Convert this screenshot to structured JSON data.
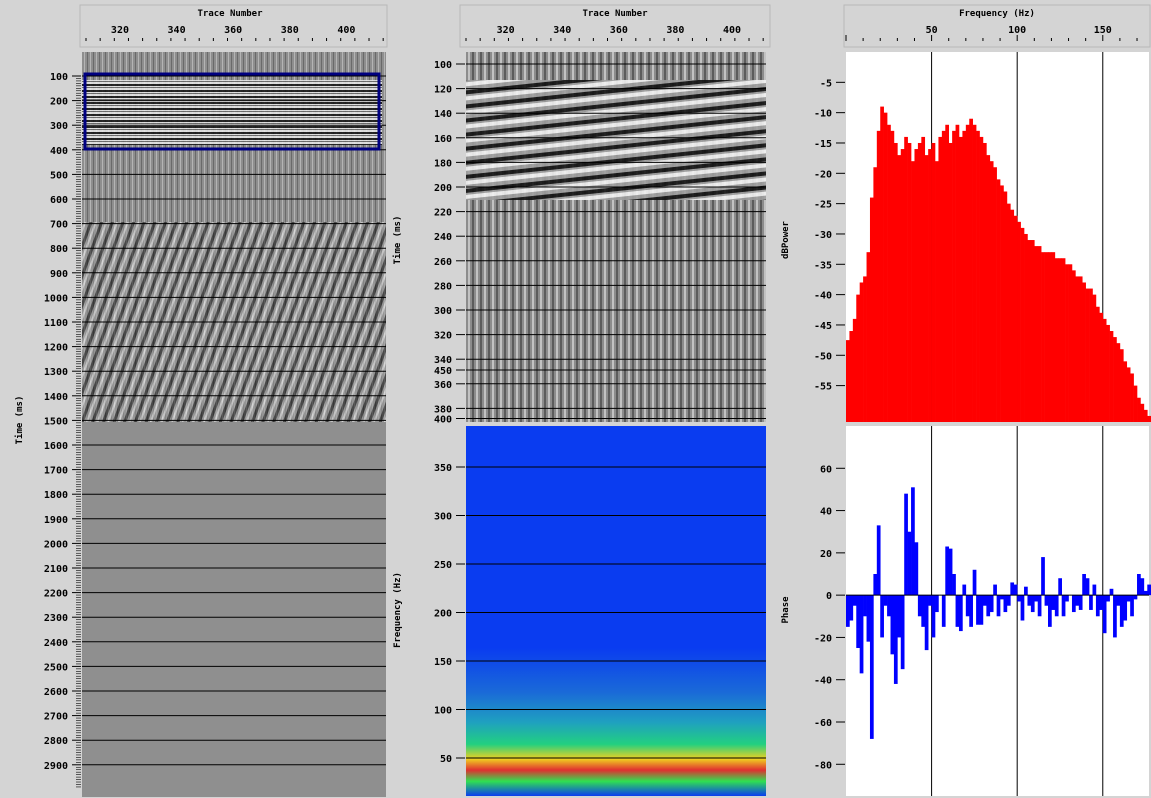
{
  "headers": {
    "trace_number_left": "Trace Number",
    "trace_number_mid": "Trace Number",
    "frequency": "Frequency (Hz)"
  },
  "axis_labels": {
    "left_y": "Time (ms)",
    "mid_top_y": "Time (ms)",
    "mid_bottom_y": "Frequency (Hz)",
    "right_top_y": "dBPower",
    "right_bottom_y": "Phase"
  },
  "trace_ticks": [
    "320",
    "340",
    "360",
    "380",
    "400"
  ],
  "freq_ticks": [
    "50",
    "100",
    "150"
  ],
  "colors": {
    "background": "#d4d4d4",
    "power_bar": "#ff0000",
    "phase_bar": "#0000ff",
    "selection_box": "#000080",
    "spectrogram_bg": "#0a3cf0"
  },
  "chart_data": [
    {
      "type": "bar",
      "xlabel": "Frequency (Hz)",
      "ylabel": "dBPower",
      "xlim": [
        0,
        177
      ],
      "ylim": [
        -61,
        0
      ],
      "xticks": [
        50,
        100,
        150
      ],
      "yticks": [
        -5,
        -10,
        -15,
        -20,
        -25,
        -30,
        -35,
        -40,
        -45,
        -50,
        -55
      ],
      "x": [
        0,
        2,
        4,
        6,
        8,
        10,
        12,
        14,
        16,
        18,
        20,
        22,
        24,
        26,
        28,
        30,
        32,
        34,
        36,
        38,
        40,
        42,
        44,
        46,
        48,
        50,
        52,
        54,
        56,
        58,
        60,
        62,
        64,
        66,
        68,
        70,
        72,
        74,
        76,
        78,
        80,
        82,
        84,
        86,
        88,
        90,
        92,
        94,
        96,
        98,
        100,
        102,
        104,
        106,
        108,
        110,
        112,
        114,
        116,
        118,
        120,
        122,
        124,
        126,
        128,
        130,
        132,
        134,
        136,
        138,
        140,
        142,
        144,
        146,
        148,
        150,
        152,
        154,
        156,
        158,
        160,
        162,
        164,
        166,
        168,
        170,
        172,
        174,
        176
      ],
      "values": [
        -47.5,
        -46,
        -44,
        -40,
        -38,
        -37,
        -33,
        -24,
        -19,
        -13,
        -9,
        -10,
        -12,
        -13,
        -15,
        -17,
        -16,
        -14,
        -15,
        -18,
        -16,
        -15,
        -14,
        -17,
        -16,
        -15,
        -18,
        -14,
        -13,
        -12,
        -15,
        -13,
        -12,
        -14,
        -13,
        -12,
        -11,
        -12,
        -13,
        -14,
        -15,
        -17,
        -18,
        -19,
        -21,
        -22,
        -23,
        -25,
        -26,
        -27,
        -28,
        -29,
        -30,
        -31,
        -31,
        -32,
        -32,
        -33,
        -33,
        -33,
        -33,
        -34,
        -34,
        -34,
        -35,
        -35,
        -36,
        -37,
        -37,
        -38,
        -39,
        -39,
        -40,
        -42,
        -43,
        -44,
        -45,
        -46,
        -47,
        -48,
        -49,
        -51,
        -52,
        -53,
        -55,
        -57,
        -58,
        -59,
        -60
      ]
    },
    {
      "type": "bar",
      "xlabel": "Frequency (Hz)",
      "ylabel": "Phase",
      "xlim": [
        0,
        177
      ],
      "ylim": [
        -95,
        80
      ],
      "xticks": [
        50,
        100,
        150
      ],
      "yticks": [
        60,
        40,
        20,
        0,
        -20,
        -40,
        -60,
        -80
      ],
      "x": [
        0,
        2,
        4,
        6,
        8,
        10,
        12,
        14,
        16,
        18,
        20,
        22,
        24,
        26,
        28,
        30,
        32,
        34,
        36,
        38,
        40,
        42,
        44,
        46,
        48,
        50,
        52,
        54,
        56,
        58,
        60,
        62,
        64,
        66,
        68,
        70,
        72,
        74,
        76,
        78,
        80,
        82,
        84,
        86,
        88,
        90,
        92,
        94,
        96,
        98,
        100,
        102,
        104,
        106,
        108,
        110,
        112,
        114,
        116,
        118,
        120,
        122,
        124,
        126,
        128,
        130,
        132,
        134,
        136,
        138,
        140,
        142,
        144,
        146,
        148,
        150,
        152,
        154,
        156,
        158,
        160,
        162,
        164,
        166,
        168,
        170,
        172,
        174,
        176
      ],
      "values": [
        -15,
        -12,
        -5,
        -25,
        -37,
        -10,
        -22,
        -68,
        10,
        33,
        -20,
        -5,
        -10,
        -28,
        -42,
        -20,
        -35,
        48,
        30,
        51,
        25,
        -10,
        -15,
        -26,
        -5,
        -20,
        -8,
        0,
        -15,
        23,
        22,
        10,
        -15,
        -17,
        5,
        -10,
        -15,
        12,
        -14,
        -14,
        -5,
        -10,
        -8,
        5,
        -10,
        -2,
        -8,
        -5,
        6,
        5,
        -3,
        -12,
        4,
        -5,
        -8,
        -3,
        -10,
        18,
        -5,
        -15,
        -7,
        -10,
        8,
        -10,
        -3,
        0,
        -8,
        -5,
        -7,
        10,
        8,
        -7,
        5,
        -10,
        -7,
        -18,
        -3,
        3,
        -20,
        -5,
        -15,
        -12,
        -3,
        -10,
        -2,
        10,
        8,
        2,
        5
      ]
    }
  ]
}
